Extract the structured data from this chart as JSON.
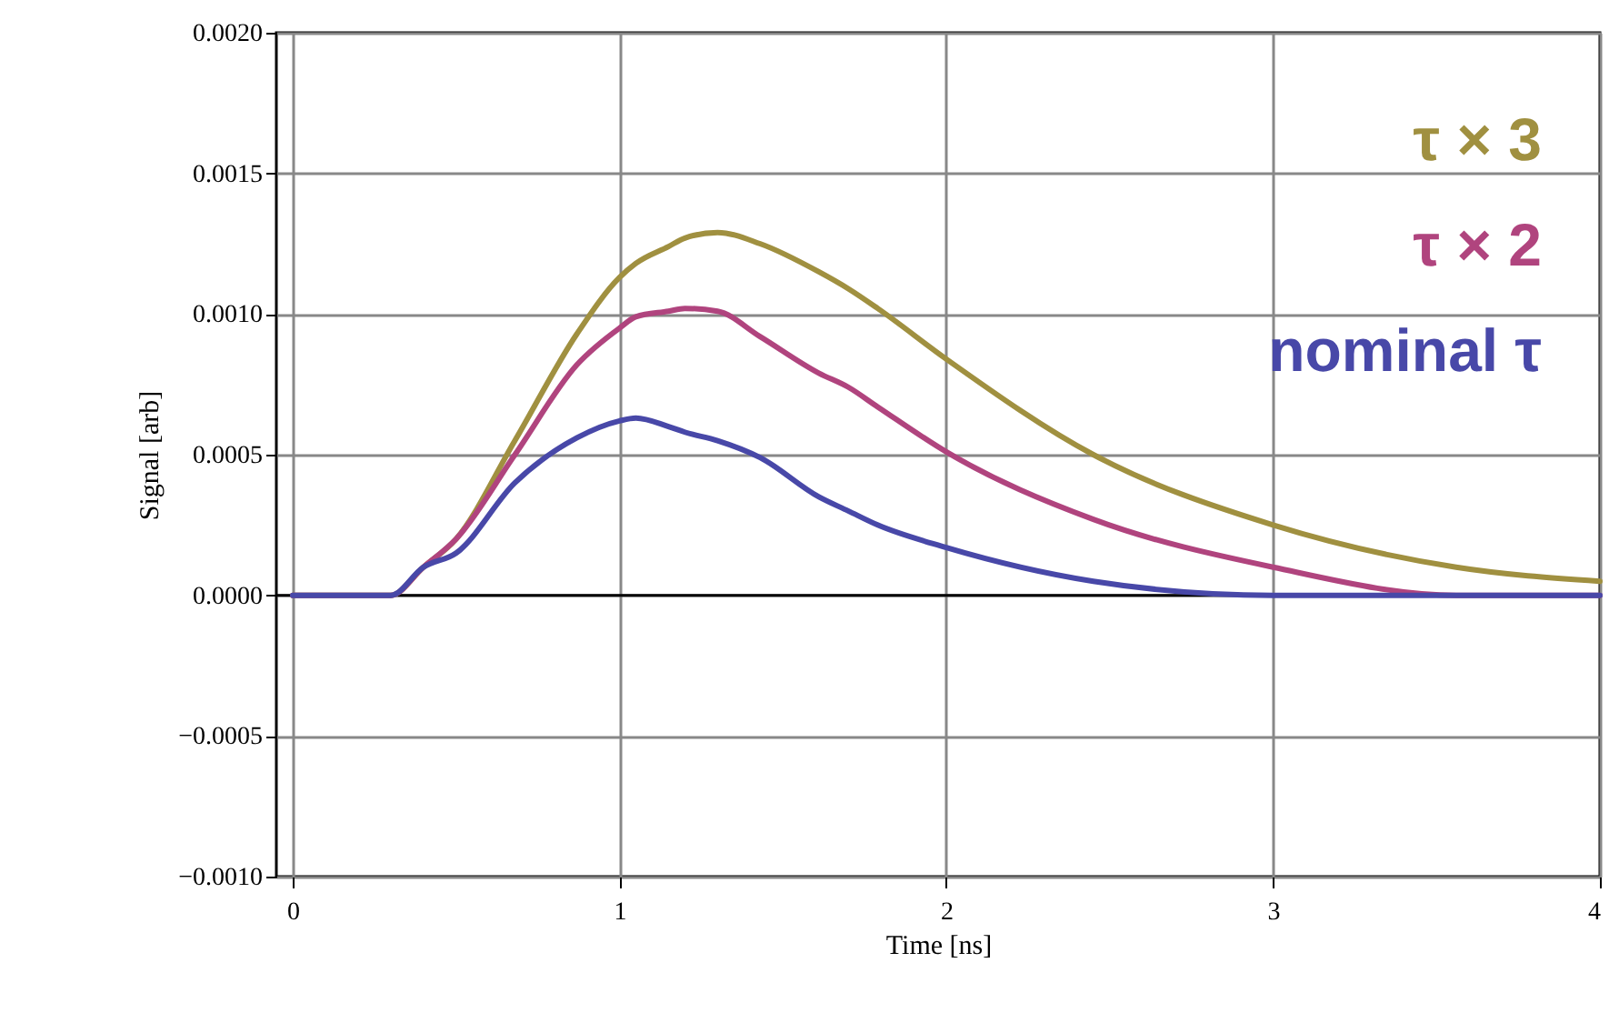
{
  "chart_data": {
    "type": "line",
    "xlabel": "Time [ns]",
    "ylabel": "Signal [arb]",
    "xlim": [
      -0.05,
      4.0
    ],
    "ylim": [
      -0.001,
      0.002
    ],
    "xticks": [
      {
        "value": 0,
        "label": "0"
      },
      {
        "value": 1,
        "label": "1"
      },
      {
        "value": 2,
        "label": "2"
      },
      {
        "value": 3,
        "label": "3"
      },
      {
        "value": 4,
        "label": "4"
      }
    ],
    "yticks": [
      {
        "value": -0.001,
        "label": "−0.0010"
      },
      {
        "value": -0.0005,
        "label": "−0.0005"
      },
      {
        "value": 0,
        "label": "0.0000"
      },
      {
        "value": 0.0005,
        "label": "0.0005"
      },
      {
        "value": 0.001,
        "label": "0.0010"
      },
      {
        "value": 0.0015,
        "label": "0.0015"
      },
      {
        "value": 0.002,
        "label": "0.0020"
      }
    ],
    "grid": true,
    "legend": "top right",
    "marker": "none",
    "line_style": "solid",
    "ref_lines": [
      {
        "axis": "y",
        "value": 0,
        "color": "#000000"
      }
    ],
    "x": [
      0,
      0.2,
      0.3,
      0.4,
      0.5,
      0.68,
      0.87,
      1.0,
      1.05,
      1.15,
      1.2,
      1.3,
      1.43,
      1.61,
      1.7,
      1.79,
      2.0,
      2.45,
      3.0,
      3.56,
      4.0
    ],
    "series": [
      {
        "name": "τ × 3",
        "color": "#a09040",
        "values": [
          0,
          0,
          0,
          0.0001,
          0.0002,
          0.00055,
          0.00093,
          0.00113,
          0.00118,
          0.00124,
          0.00127,
          0.00129,
          0.00125,
          0.00115,
          0.00109,
          0.00102,
          0.00084,
          0.0005,
          0.00025,
          0.0001,
          5e-05
        ]
      },
      {
        "name": "τ × 2",
        "color": "#b0447e",
        "values": [
          0,
          0,
          0,
          0.0001,
          0.0002,
          0.0005,
          0.00082,
          0.00095,
          0.00099,
          0.00101,
          0.00102,
          0.00101,
          0.00092,
          0.00079,
          0.00074,
          0.00067,
          0.00051,
          0.00027,
          0.0001,
          0,
          0
        ]
      },
      {
        "name": "nominal τ",
        "color": "#4848a8",
        "values": [
          0,
          0,
          0,
          0.0001,
          0.00015,
          0.0004,
          0.00056,
          0.00062,
          0.00063,
          0.0006,
          0.00058,
          0.00055,
          0.00049,
          0.00035,
          0.0003,
          0.00025,
          0.00017,
          5e-05,
          0,
          0,
          0
        ]
      }
    ]
  }
}
